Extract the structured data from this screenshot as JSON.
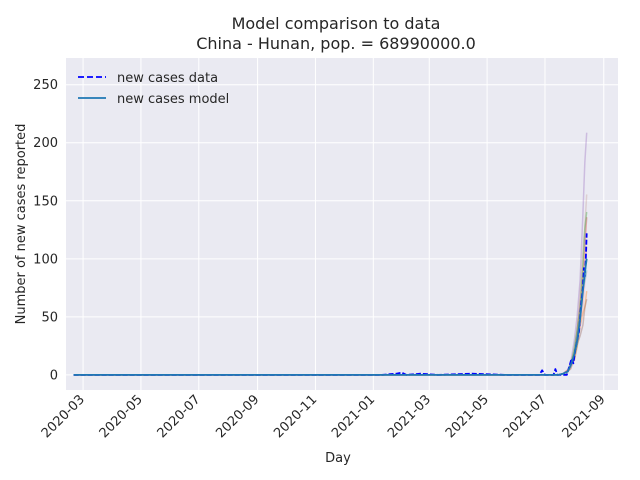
{
  "chart_data": {
    "type": "line",
    "title": "Model comparison to data",
    "subtitle": "China - Hunan, pop. = 68990000.0",
    "xlabel": "Day",
    "ylabel": "Number of new cases reported",
    "x_ticks": [
      "2020-03",
      "2020-05",
      "2020-07",
      "2020-09",
      "2020-11",
      "2021-01",
      "2021-03",
      "2021-05",
      "2021-07",
      "2021-09"
    ],
    "y_ticks": [
      0,
      50,
      100,
      150,
      200,
      250
    ],
    "ylim": [
      -13,
      273
    ],
    "xlim": [
      "2020-02-12",
      "2021-09-16"
    ],
    "grid": true,
    "legend_position": "top-left",
    "series": [
      {
        "name": "new cases data",
        "style": "dashed",
        "color": "#0000ff",
        "points": [
          [
            "2020-02-20",
            0
          ],
          [
            "2020-03-20",
            0
          ],
          [
            "2020-06-01",
            0
          ],
          [
            "2020-09-01",
            0
          ],
          [
            "2020-12-01",
            0
          ],
          [
            "2021-01-10",
            0
          ],
          [
            "2021-01-25",
            1
          ],
          [
            "2021-01-31",
            2
          ],
          [
            "2021-02-05",
            0
          ],
          [
            "2021-02-20",
            1
          ],
          [
            "2021-03-10",
            0
          ],
          [
            "2021-04-15",
            1
          ],
          [
            "2021-05-20",
            0
          ],
          [
            "2021-06-25",
            0
          ],
          [
            "2021-06-28",
            4
          ],
          [
            "2021-07-01",
            0
          ],
          [
            "2021-07-10",
            0
          ],
          [
            "2021-07-12",
            5
          ],
          [
            "2021-07-14",
            0
          ],
          [
            "2021-07-24",
            0
          ],
          [
            "2021-07-27",
            8
          ],
          [
            "2021-07-29",
            14
          ],
          [
            "2021-07-31",
            10
          ],
          [
            "2021-08-02",
            22
          ],
          [
            "2021-08-04",
            30
          ],
          [
            "2021-08-06",
            38
          ],
          [
            "2021-08-08",
            60
          ],
          [
            "2021-08-10",
            75
          ],
          [
            "2021-08-11",
            92
          ],
          [
            "2021-08-12",
            85
          ],
          [
            "2021-08-13",
            100
          ],
          [
            "2021-08-14",
            122
          ]
        ]
      },
      {
        "name": "new cases model",
        "style": "solid",
        "color": "#1f77b4",
        "points": [
          [
            "2020-02-20",
            0
          ],
          [
            "2020-06-01",
            0
          ],
          [
            "2020-12-01",
            0
          ],
          [
            "2021-03-01",
            0
          ],
          [
            "2021-06-01",
            0
          ],
          [
            "2021-07-01",
            0
          ],
          [
            "2021-07-15",
            0
          ],
          [
            "2021-07-20",
            1
          ],
          [
            "2021-07-25",
            3
          ],
          [
            "2021-07-28",
            8
          ],
          [
            "2021-08-01",
            18
          ],
          [
            "2021-08-04",
            30
          ],
          [
            "2021-08-07",
            48
          ],
          [
            "2021-08-10",
            72
          ],
          [
            "2021-08-12",
            88
          ],
          [
            "2021-08-14",
            100
          ]
        ]
      }
    ]
  }
}
